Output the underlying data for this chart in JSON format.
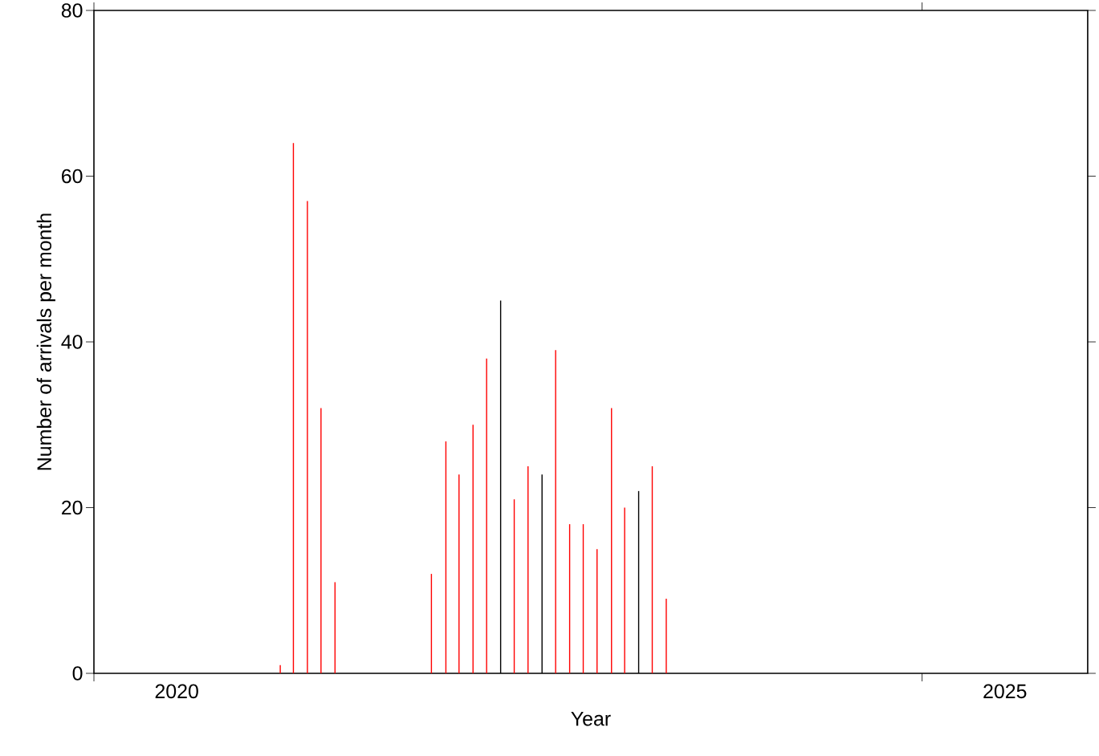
{
  "chart_data": {
    "type": "bar",
    "xlabel": "Year",
    "ylabel": "Number of arrivals per month",
    "x": [
      "2021-02-15",
      "2021-03-15",
      "2021-04-15",
      "2021-05-15",
      "2021-06-15",
      "2022-01-15",
      "2022-02-15",
      "2022-03-15",
      "2022-04-15",
      "2022-05-15",
      "2022-06-15",
      "2022-07-15",
      "2022-08-15",
      "2022-09-15",
      "2022-10-15",
      "2022-11-15",
      "2022-12-15",
      "2023-01-15",
      "2023-02-15",
      "2023-03-15",
      "2023-04-15",
      "2023-05-15",
      "2023-06-15"
    ],
    "values": [
      1,
      64,
      57,
      32,
      11,
      12,
      28,
      24,
      30,
      38,
      45,
      21,
      25,
      24,
      39,
      18,
      18,
      15,
      32,
      20,
      22,
      25,
      9
    ],
    "colors": [
      "#ff0000",
      "#ff0000",
      "#ff0000",
      "#ff0000",
      "#ff0000",
      "#ff0000",
      "#ff0000",
      "#ff0000",
      "#ff0000",
      "#ff0000",
      "#000000",
      "#ff0000",
      "#ff0000",
      "#000000",
      "#ff0000",
      "#ff0000",
      "#ff0000",
      "#ff0000",
      "#ff0000",
      "#ff0000",
      "#000000",
      "#ff0000",
      "#ff0000"
    ],
    "xlim": [
      "2020",
      "2026"
    ],
    "ylim": [
      0,
      80
    ],
    "yticks": [
      0,
      20,
      40,
      60,
      80
    ],
    "xticks": [
      {
        "value": "2020",
        "label": null
      },
      {
        "value": "2020-07",
        "label": "2020"
      },
      {
        "value": "2025",
        "label": null
      },
      {
        "value": "2025-07",
        "label": "2025"
      }
    ]
  }
}
